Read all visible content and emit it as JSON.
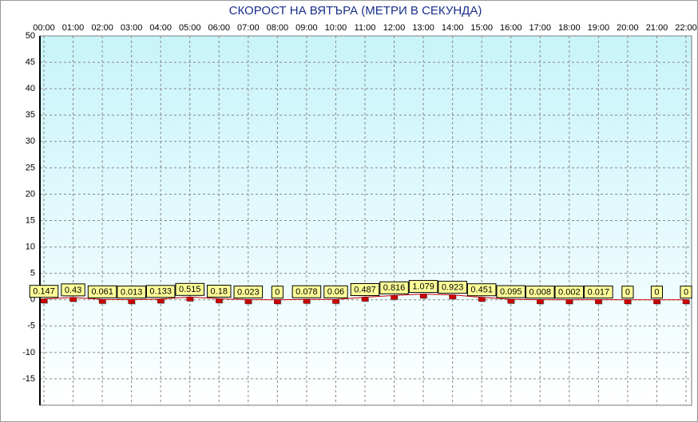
{
  "chart_data": {
    "type": "line",
    "title": "СКОРОСТ НА ВЯТЪРА (МЕТРИ В СЕКУНДА)",
    "categories": [
      "00:00",
      "01:00",
      "02:00",
      "03:00",
      "04:00",
      "05:00",
      "06:00",
      "07:00",
      "08:00",
      "09:00",
      "10:00",
      "11:00",
      "12:00",
      "13:00",
      "14:00",
      "15:00",
      "16:00",
      "17:00",
      "18:00",
      "19:00",
      "20:00",
      "21:00",
      "22:00"
    ],
    "values": [
      0.147,
      0.43,
      0.061,
      0.013,
      0.133,
      0.515,
      0.18,
      0.023,
      0,
      0.078,
      0.06,
      0.487,
      0.816,
      1.079,
      0.923,
      0.451,
      0.095,
      0.008,
      0.002,
      0.017,
      0,
      0,
      0
    ],
    "color": "#cc0000",
    "ylim": [
      -20,
      50
    ],
    "yticks": [
      50,
      45,
      40,
      35,
      30,
      25,
      20,
      15,
      10,
      5,
      0,
      -5,
      -10,
      -15
    ],
    "grid": true
  }
}
